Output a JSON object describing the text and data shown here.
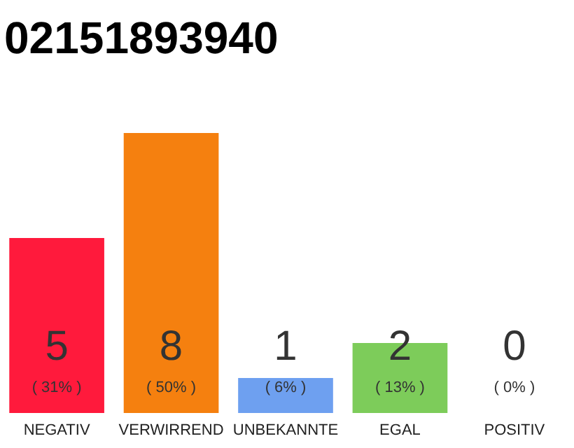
{
  "chart_data": {
    "type": "bar",
    "title": "02151893940",
    "categories": [
      "NEGATIV",
      "VERWIRREND",
      "UNBEKANNTE",
      "EGAL",
      "POSITIV"
    ],
    "values": [
      5,
      8,
      1,
      2,
      0
    ],
    "colors": [
      "#ff1a3c",
      "#f5800f",
      "#6ea0f0",
      "#7dcc5a",
      "#f0f0f0"
    ],
    "ylim": [
      0,
      8
    ],
    "data_labels": true,
    "tick_labels": "x",
    "grid": false,
    "annotations": [
      "( 31% )",
      "( 50% )",
      "( 6% )",
      "( 13% )",
      "( 0% )"
    ]
  }
}
